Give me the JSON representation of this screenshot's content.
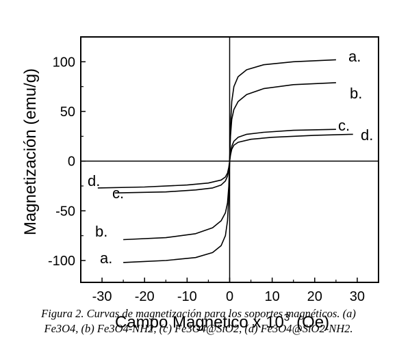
{
  "chart_data": {
    "type": "line",
    "xlabel": "Campo Magnetico x 10",
    "xlabel_sup": "3",
    "xlabel_unit": "(Oe)",
    "ylabel": "Magnetización (emu/g)",
    "xlim": [
      -35,
      35
    ],
    "ylim": [
      -122,
      125
    ],
    "xticks": [
      -30,
      -20,
      -10,
      0,
      10,
      20,
      30
    ],
    "yticks": [
      -100,
      -50,
      0,
      50,
      100
    ],
    "grid": false,
    "zero_lines": true,
    "series": [
      {
        "name": "a.",
        "color": "#000000",
        "x": [
          -25,
          -15,
          -8,
          -4,
          -2,
          -1,
          -0.5,
          -0.2,
          0,
          0.2,
          0.5,
          1,
          2,
          4,
          8,
          15,
          25
        ],
        "y": [
          -102,
          -100,
          -97,
          -92,
          -85,
          -75,
          -60,
          -35,
          0,
          35,
          60,
          75,
          85,
          92,
          97,
          100,
          102
        ],
        "label_pos": "right-end",
        "mirror_label": "a."
      },
      {
        "name": "b.",
        "color": "#000000",
        "x": [
          -25,
          -15,
          -8,
          -4,
          -2,
          -1,
          -0.5,
          -0.2,
          0,
          0.2,
          0.5,
          1,
          2,
          4,
          8,
          15,
          25
        ],
        "y": [
          -79,
          -77,
          -73,
          -67,
          -60,
          -52,
          -42,
          -25,
          0,
          25,
          42,
          52,
          60,
          67,
          73,
          77,
          79
        ],
        "label_pos": "right-end",
        "mirror_label": "b."
      },
      {
        "name": "c.",
        "color": "#000000",
        "x": [
          -27,
          -15,
          -8,
          -4,
          -2,
          -1,
          -0.5,
          -0.2,
          0,
          0.2,
          0.5,
          1,
          2,
          4,
          8,
          15,
          25
        ],
        "y": [
          -32,
          -31,
          -29,
          -27,
          -24,
          -20,
          -15,
          -8,
          0,
          8,
          15,
          20,
          24,
          27,
          29,
          31,
          32
        ],
        "label_pos": "right-end",
        "mirror_label": "c."
      },
      {
        "name": "d.",
        "color": "#000000",
        "x": [
          -31,
          -20,
          -10,
          -5,
          -2,
          -1,
          -0.5,
          -0.2,
          0,
          0.2,
          0.5,
          1,
          2,
          5,
          10,
          20,
          29
        ],
        "y": [
          -27,
          -26,
          -24,
          -22,
          -19,
          -16,
          -12,
          -6,
          0,
          6,
          12,
          16,
          19,
          22,
          24,
          26,
          27
        ],
        "label_pos": "right-end",
        "mirror_label": "d."
      }
    ]
  },
  "caption": {
    "line1": "Figura 2. Curvas de magnetización para los soportes magnéticos. (a)",
    "line2": "Fe3O4, (b) Fe3O4-NH2, (c) Fe3O4@SiO2, (d) Fe3O4@SiO2-NH2."
  }
}
